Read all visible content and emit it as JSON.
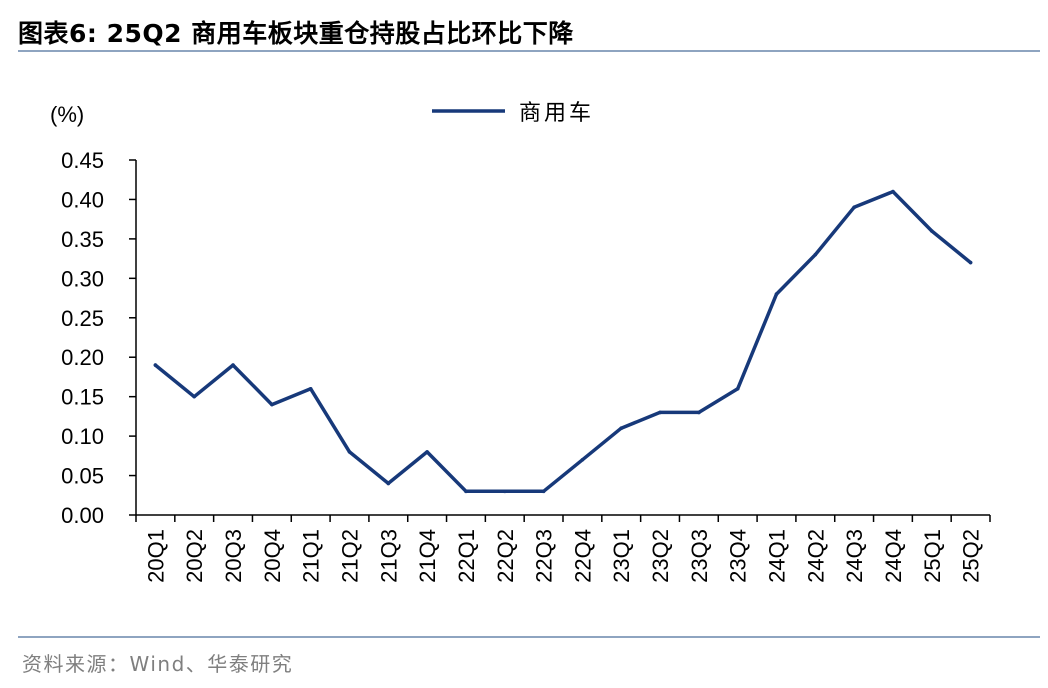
{
  "header": {
    "title": "图表6:  25Q2 商用车板块重仓持股占比环比下降"
  },
  "footer": {
    "source": "资料来源：Wind、华泰研究"
  },
  "colors": {
    "series_line": "#17397a",
    "axis": "#000000",
    "rule": "#8ea4c0",
    "source_text": "#7f7f7f"
  },
  "chart_data": {
    "type": "line",
    "title": "",
    "ylabel": "(%)",
    "xlabel": "",
    "ylim": [
      0,
      0.45
    ],
    "yticks": [
      "0.00",
      "0.05",
      "0.10",
      "0.15",
      "0.20",
      "0.25",
      "0.30",
      "0.35",
      "0.40",
      "0.45"
    ],
    "grid": false,
    "legend_position": "top-center",
    "categories": [
      "20Q1",
      "20Q2",
      "20Q3",
      "20Q4",
      "21Q1",
      "21Q2",
      "21Q3",
      "21Q4",
      "22Q1",
      "22Q2",
      "22Q3",
      "22Q4",
      "23Q1",
      "23Q2",
      "23Q3",
      "23Q4",
      "24Q1",
      "24Q2",
      "24Q3",
      "24Q4",
      "25Q1",
      "25Q2"
    ],
    "series": [
      {
        "name": "商用车",
        "values": [
          0.19,
          0.15,
          0.19,
          0.14,
          0.16,
          0.08,
          0.04,
          0.08,
          0.03,
          0.03,
          0.03,
          0.07,
          0.11,
          0.13,
          0.13,
          0.16,
          0.28,
          0.33,
          0.39,
          0.41,
          0.36,
          0.32
        ]
      }
    ]
  }
}
